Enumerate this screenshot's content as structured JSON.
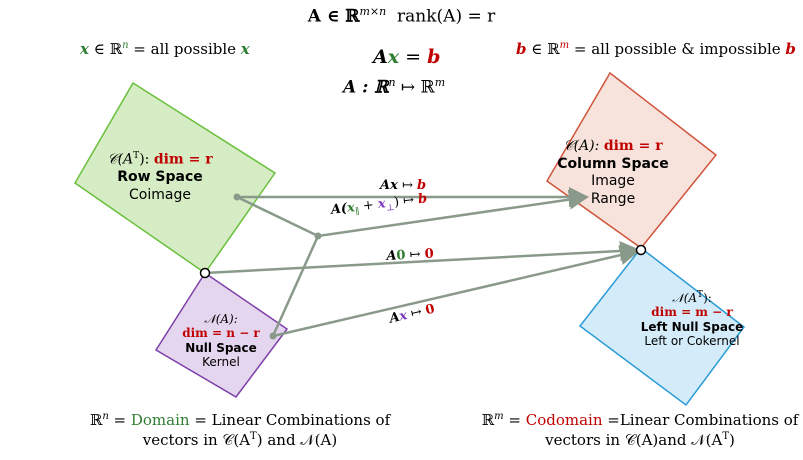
{
  "header": {
    "matrix": "A ∈ ℝ",
    "matrix_sup": "m×n",
    "rank": "rank(A) = r"
  },
  "domain_label": {
    "var": "x",
    "mid": " ∈ ℝ",
    "sup": "n",
    "rest": " = all possible ",
    "end": "x"
  },
  "codomain_label": {
    "var": "b",
    "mid": " ∈ ℝ",
    "sup": "m",
    "rest": " = all possible & impossible ",
    "end": "b"
  },
  "equation": {
    "a": "A",
    "x": "x",
    "eq": " = ",
    "b": "b"
  },
  "mapping": {
    "a": "A : ℝ",
    "sup1": "n",
    "arrow": " ↦ ℝ",
    "sup2": "m"
  },
  "row_space": {
    "dim_prefix": "𝒞(A",
    "dim_sup": "T",
    "dim_close": "): ",
    "dim": "dim = r",
    "name": "Row Space",
    "alias": "Coimage"
  },
  "column_space": {
    "dim_prefix": "𝒞(A): ",
    "dim": "dim = r",
    "name": "Column Space",
    "alias1": "Image",
    "alias2": "Range"
  },
  "null_space": {
    "dim_prefix": "𝒩(A):",
    "dim": "dim = n − r",
    "name": "Null Space",
    "alias": "Kernel"
  },
  "left_null_space": {
    "dim_prefix": "𝒩(A",
    "dim_sup": "T",
    "dim_close": "):",
    "dim": "dim = m − r",
    "name": "Left Null Space",
    "alias": "Left or Cokernel"
  },
  "arrows": {
    "ax_a": "A",
    "ax_x": "x",
    "ax_to": " ↦ ",
    "ax_b": "b",
    "sum_a": "A(",
    "sum_x1": "x",
    "sum_sub1": "∥",
    "sum_plus": " + ",
    "sum_x2": "x",
    "sum_sub2": "⊥",
    "sum_close": ") ↦ ",
    "sum_b": "b",
    "zero_a": "A",
    "zero_0": "0",
    "zero_to": " ↦ ",
    "zero_r": "0",
    "null_a": "A",
    "null_x": "x",
    "null_to": " ↦ ",
    "null_r": "0"
  },
  "bottom_left": {
    "line1a": "ℝ",
    "line1sup": "n",
    "line1b": " = ",
    "domain": "Domain",
    "line1c": " = Linear Combinations of",
    "line2": "vectors in 𝒞(A",
    "line2sup": "T",
    "line2b": ") and 𝒩(A)"
  },
  "bottom_right": {
    "line1a": "ℝ",
    "line1sup": "m",
    "line1b": " = ",
    "codomain": "Codomain",
    "line1c": " =Linear Combinations of",
    "line2": "vectors in 𝒞(A)and 𝒩(A",
    "line2sup": "T",
    "line2b": ")"
  },
  "colors": {
    "row_fill": "#d5ecc4",
    "row_stroke": "#6abf3c",
    "col_fill": "#f8e3dc",
    "col_stroke": "#d0543a",
    "null_fill": "#e4d6ee",
    "null_stroke": "#7e3fa8",
    "lnull_fill": "#d4ecf9",
    "lnull_stroke": "#2a9bd6",
    "arrow": "#8a9a8a",
    "green": "#2f7d32",
    "red": "#c00000"
  }
}
